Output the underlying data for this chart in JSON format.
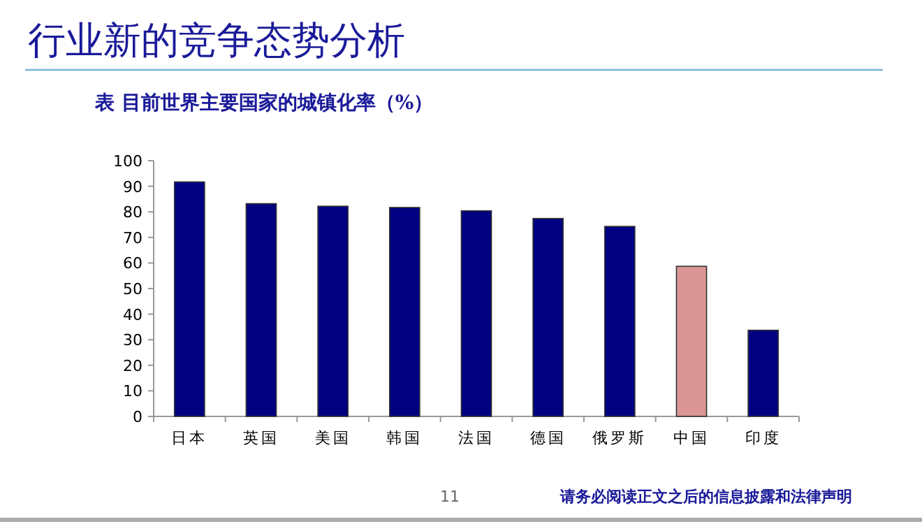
{
  "chart_data": {
    "type": "bar",
    "title": "行业新的竞争态势分析",
    "subtitle": "表 目前世界主要国家的城镇化率（%）",
    "categories": [
      "日本",
      "英国",
      "美国",
      "韩国",
      "法国",
      "德国",
      "俄罗斯",
      "中国",
      "印度"
    ],
    "values": [
      91.7,
      83.2,
      82.2,
      81.7,
      80.4,
      77.4,
      74.3,
      58.7,
      33.7
    ],
    "colors": [
      "#000080",
      "#000080",
      "#000080",
      "#000080",
      "#000080",
      "#000080",
      "#000080",
      "#d99694",
      "#000080"
    ],
    "ylim": [
      0,
      100
    ],
    "yticks": [
      0,
      10,
      20,
      30,
      40,
      50,
      60,
      70,
      80,
      90,
      100
    ],
    "annotations": [
      "11",
      "请务必阅读正文之后的信息披露和法律声明"
    ]
  }
}
